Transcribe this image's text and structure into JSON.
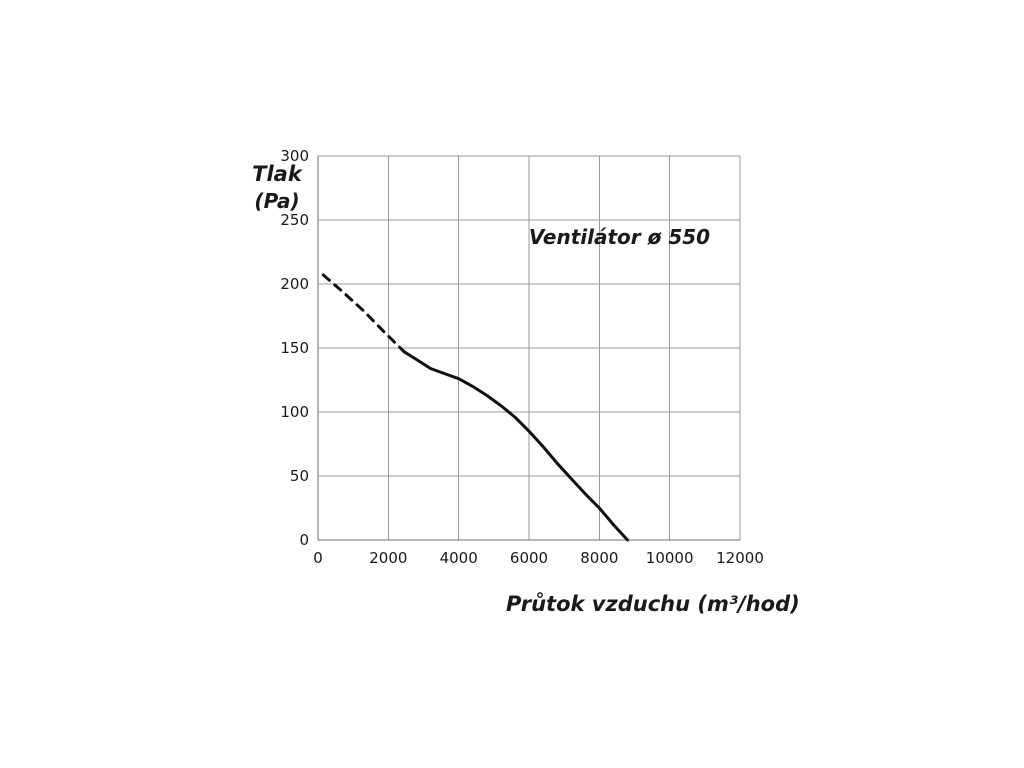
{
  "chart_data": {
    "type": "line",
    "title": "Ventilátor ø 550",
    "ylabel_line1": "Tlak",
    "ylabel_line2": "(Pa)",
    "xlabel": "Průtok vzduchu (m³/hod)",
    "xlim": [
      0,
      12000
    ],
    "ylim": [
      0,
      300
    ],
    "xticks": [
      0,
      2000,
      4000,
      6000,
      8000,
      10000,
      12000
    ],
    "yticks": [
      0,
      50,
      100,
      150,
      200,
      250,
      300
    ],
    "grid": true,
    "legend": "none",
    "colors": {
      "grid": "#9a9a9a",
      "curve": "#111111",
      "text": "#1a1a1a"
    },
    "series": [
      {
        "name": "fan-curve-extrapolated",
        "style": "dashed",
        "points": [
          [
            150,
            207
          ],
          [
            700,
            194
          ],
          [
            1300,
            179
          ],
          [
            1900,
            162
          ],
          [
            2450,
            147
          ]
        ]
      },
      {
        "name": "fan-curve",
        "style": "solid",
        "points": [
          [
            2450,
            147
          ],
          [
            2800,
            141
          ],
          [
            3200,
            134
          ],
          [
            3600,
            130
          ],
          [
            4000,
            126
          ],
          [
            4400,
            120
          ],
          [
            4800,
            113
          ],
          [
            5200,
            105
          ],
          [
            5600,
            96
          ],
          [
            6000,
            85
          ],
          [
            6400,
            73
          ],
          [
            6800,
            60
          ],
          [
            7200,
            48
          ],
          [
            7600,
            36
          ],
          [
            8000,
            25
          ],
          [
            8400,
            12
          ],
          [
            8800,
            0
          ]
        ]
      }
    ]
  }
}
